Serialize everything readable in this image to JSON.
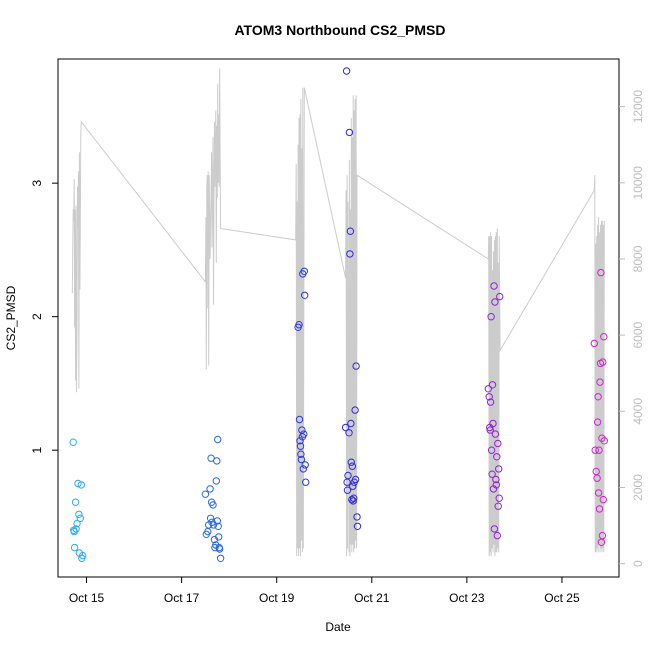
{
  "chart_data": {
    "type": "scatter",
    "title": "ATOM3 Northbound CS2_PMSD",
    "xlabel": "Date",
    "ylabel": "CS2_PMSD",
    "x_ticks": [
      {
        "day": 15,
        "label": "Oct 15"
      },
      {
        "day": 17,
        "label": "Oct 17"
      },
      {
        "day": 19,
        "label": "Oct 19"
      },
      {
        "day": 21,
        "label": "Oct 21"
      },
      {
        "day": 23,
        "label": "Oct 23"
      },
      {
        "day": 25,
        "label": "Oct 25"
      }
    ],
    "xlim": [
      14.4,
      26.2
    ],
    "ylim": [
      0.05,
      3.93
    ],
    "y_ticks": [
      1,
      2,
      3
    ],
    "y2_ticks": [
      0,
      2000,
      4000,
      6000,
      8000,
      10000,
      12000
    ],
    "y2lim": [
      -350,
      13250
    ],
    "colors": {
      "points_start": "#29b6f6",
      "points_mid": "#2a2ad8",
      "points_end": "#e020d0",
      "line": "#cccccc",
      "right_axis": "#bdbdbd"
    },
    "points": [
      [
        14.72,
        1.06
      ],
      [
        14.73,
        0.4
      ],
      [
        14.74,
        0.39
      ],
      [
        14.75,
        0.27
      ],
      [
        14.77,
        0.61
      ],
      [
        14.78,
        0.41
      ],
      [
        14.8,
        0.45
      ],
      [
        14.82,
        0.75
      ],
      [
        14.84,
        0.52
      ],
      [
        14.85,
        0.23
      ],
      [
        14.87,
        0.49
      ],
      [
        14.89,
        0.74
      ],
      [
        14.9,
        0.19
      ],
      [
        14.92,
        0.21
      ],
      [
        17.5,
        0.67
      ],
      [
        17.52,
        0.37
      ],
      [
        17.55,
        0.39
      ],
      [
        17.57,
        0.44
      ],
      [
        17.6,
        0.71
      ],
      [
        17.61,
        0.49
      ],
      [
        17.62,
        0.94
      ],
      [
        17.63,
        0.61
      ],
      [
        17.64,
        0.46
      ],
      [
        17.66,
        0.59
      ],
      [
        17.67,
        0.44
      ],
      [
        17.69,
        0.33
      ],
      [
        17.7,
        0.27
      ],
      [
        17.72,
        0.29
      ],
      [
        17.73,
        0.77
      ],
      [
        17.74,
        0.92
      ],
      [
        17.75,
        0.47
      ],
      [
        17.76,
        1.08
      ],
      [
        17.77,
        0.43
      ],
      [
        17.78,
        0.35
      ],
      [
        17.79,
        0.27
      ],
      [
        17.8,
        0.26
      ],
      [
        17.82,
        0.19
      ],
      [
        19.45,
        1.92
      ],
      [
        19.47,
        1.94
      ],
      [
        19.48,
        1.23
      ],
      [
        19.49,
        1.07
      ],
      [
        19.5,
        1.03
      ],
      [
        19.51,
        0.97
      ],
      [
        19.52,
        0.93
      ],
      [
        19.53,
        1.15
      ],
      [
        19.54,
        1.1
      ],
      [
        19.55,
        2.32
      ],
      [
        19.56,
        0.86
      ],
      [
        19.57,
        1.12
      ],
      [
        19.58,
        2.34
      ],
      [
        19.59,
        2.16
      ],
      [
        19.6,
        0.89
      ],
      [
        19.61,
        0.76
      ],
      [
        20.45,
        1.17
      ],
      [
        20.47,
        3.84
      ],
      [
        20.48,
        0.76
      ],
      [
        20.49,
        0.7
      ],
      [
        20.5,
        0.81
      ],
      [
        20.52,
        1.13
      ],
      [
        20.53,
        3.38
      ],
      [
        20.54,
        2.47
      ],
      [
        20.55,
        2.64
      ],
      [
        20.56,
        1.2
      ],
      [
        20.57,
        0.91
      ],
      [
        20.58,
        0.63
      ],
      [
        20.59,
        0.88
      ],
      [
        20.6,
        0.73
      ],
      [
        20.61,
        0.62
      ],
      [
        20.62,
        0.64
      ],
      [
        20.63,
        0.76
      ],
      [
        20.65,
        1.3
      ],
      [
        20.66,
        0.78
      ],
      [
        20.67,
        1.63
      ],
      [
        20.69,
        0.5
      ],
      [
        20.7,
        0.43
      ],
      [
        23.45,
        1.46
      ],
      [
        23.47,
        1.4
      ],
      [
        23.48,
        1.17
      ],
      [
        23.49,
        1.15
      ],
      [
        23.5,
        1.36
      ],
      [
        23.51,
        2.0
      ],
      [
        23.52,
        1.0
      ],
      [
        23.53,
        0.82
      ],
      [
        23.54,
        1.49
      ],
      [
        23.55,
        1.2
      ],
      [
        23.56,
        0.71
      ],
      [
        23.57,
        2.23
      ],
      [
        23.58,
        0.41
      ],
      [
        23.59,
        2.11
      ],
      [
        23.6,
        1.12
      ],
      [
        23.61,
        0.78
      ],
      [
        23.62,
        0.74
      ],
      [
        23.63,
        0.95
      ],
      [
        23.64,
        0.36
      ],
      [
        23.65,
        1.05
      ],
      [
        23.66,
        0.58
      ],
      [
        23.67,
        0.86
      ],
      [
        23.68,
        0.64
      ],
      [
        23.69,
        2.15
      ],
      [
        25.68,
        1.8
      ],
      [
        25.7,
        1.0
      ],
      [
        25.72,
        0.84
      ],
      [
        25.74,
        0.79
      ],
      [
        25.75,
        1.21
      ],
      [
        25.76,
        1.4
      ],
      [
        25.77,
        0.68
      ],
      [
        25.78,
        1.0
      ],
      [
        25.79,
        0.56
      ],
      [
        25.8,
        1.51
      ],
      [
        25.81,
        1.65
      ],
      [
        25.82,
        2.33
      ],
      [
        25.83,
        0.31
      ],
      [
        25.84,
        1.09
      ],
      [
        25.85,
        0.36
      ],
      [
        25.86,
        1.66
      ],
      [
        25.87,
        0.63
      ],
      [
        25.88,
        1.85
      ],
      [
        25.89,
        1.07
      ]
    ],
    "line_series": [
      [
        14.7,
        7100
      ],
      [
        14.72,
        9300
      ],
      [
        14.73,
        9000
      ],
      [
        14.74,
        10100
      ],
      [
        14.75,
        6200
      ],
      [
        14.76,
        9300
      ],
      [
        14.77,
        4800
      ],
      [
        14.78,
        9400
      ],
      [
        14.79,
        4500
      ],
      [
        14.8,
        6300
      ],
      [
        14.81,
        9900
      ],
      [
        14.82,
        8800
      ],
      [
        14.83,
        10300
      ],
      [
        14.84,
        4600
      ],
      [
        14.85,
        10800
      ],
      [
        14.86,
        7200
      ],
      [
        14.87,
        8900
      ],
      [
        14.88,
        11300
      ],
      [
        14.89,
        11600
      ],
      [
        17.5,
        7400
      ],
      [
        17.51,
        9100
      ],
      [
        17.52,
        5100
      ],
      [
        17.53,
        9900
      ],
      [
        17.54,
        10200
      ],
      [
        17.55,
        6700
      ],
      [
        17.56,
        10300
      ],
      [
        17.57,
        5200
      ],
      [
        17.58,
        10200
      ],
      [
        17.6,
        8000
      ],
      [
        17.62,
        9900
      ],
      [
        17.63,
        10800
      ],
      [
        17.64,
        8300
      ],
      [
        17.66,
        11200
      ],
      [
        17.67,
        6800
      ],
      [
        17.69,
        11600
      ],
      [
        17.7,
        9900
      ],
      [
        17.72,
        11900
      ],
      [
        17.73,
        7900
      ],
      [
        17.74,
        11500
      ],
      [
        17.75,
        9600
      ],
      [
        17.76,
        12600
      ],
      [
        17.77,
        10000
      ],
      [
        17.78,
        11800
      ],
      [
        17.79,
        9900
      ],
      [
        17.8,
        13000
      ],
      [
        17.82,
        8800
      ],
      [
        19.4,
        8500
      ],
      [
        19.41,
        10500
      ],
      [
        19.42,
        200
      ],
      [
        19.43,
        9500
      ],
      [
        19.44,
        400
      ],
      [
        19.45,
        11000
      ],
      [
        19.46,
        200
      ],
      [
        19.47,
        11700
      ],
      [
        19.48,
        400
      ],
      [
        19.49,
        11800
      ],
      [
        19.5,
        200
      ],
      [
        19.51,
        12200
      ],
      [
        19.52,
        600
      ],
      [
        19.53,
        10900
      ],
      [
        19.54,
        300
      ],
      [
        19.55,
        12500
      ],
      [
        19.56,
        400
      ],
      [
        19.58,
        12500
      ],
      [
        20.45,
        7500
      ],
      [
        20.46,
        9800
      ],
      [
        20.47,
        200
      ],
      [
        20.48,
        10200
      ],
      [
        20.49,
        400
      ],
      [
        20.5,
        9500
      ],
      [
        20.52,
        300
      ],
      [
        20.53,
        10600
      ],
      [
        20.54,
        200
      ],
      [
        20.55,
        9300
      ],
      [
        20.56,
        500
      ],
      [
        20.57,
        11700
      ],
      [
        20.58,
        300
      ],
      [
        20.59,
        11200
      ],
      [
        20.6,
        500
      ],
      [
        20.61,
        12300
      ],
      [
        20.62,
        300
      ],
      [
        20.63,
        11900
      ],
      [
        20.64,
        400
      ],
      [
        20.65,
        12200
      ],
      [
        20.66,
        600
      ],
      [
        20.67,
        12300
      ],
      [
        20.68,
        400
      ],
      [
        20.69,
        10200
      ],
      [
        23.45,
        8000
      ],
      [
        23.46,
        8600
      ],
      [
        23.47,
        200
      ],
      [
        23.48,
        8600
      ],
      [
        23.49,
        300
      ],
      [
        23.5,
        8700
      ],
      [
        23.51,
        200
      ],
      [
        23.52,
        8600
      ],
      [
        23.53,
        400
      ],
      [
        23.54,
        7700
      ],
      [
        23.55,
        300
      ],
      [
        23.56,
        8200
      ],
      [
        23.57,
        500
      ],
      [
        23.58,
        8500
      ],
      [
        23.59,
        200
      ],
      [
        23.6,
        8600
      ],
      [
        23.61,
        300
      ],
      [
        23.62,
        8700
      ],
      [
        23.63,
        300
      ],
      [
        23.64,
        8800
      ],
      [
        23.65,
        400
      ],
      [
        23.66,
        7900
      ],
      [
        23.67,
        300
      ],
      [
        23.68,
        8600
      ],
      [
        23.7,
        5600
      ],
      [
        25.68,
        9800
      ],
      [
        25.69,
        10200
      ],
      [
        25.7,
        300
      ],
      [
        25.71,
        8400
      ],
      [
        25.72,
        300
      ],
      [
        25.73,
        8600
      ],
      [
        25.74,
        400
      ],
      [
        25.75,
        8900
      ],
      [
        25.76,
        300
      ],
      [
        25.77,
        9100
      ],
      [
        25.78,
        500
      ],
      [
        25.79,
        8700
      ],
      [
        25.8,
        300
      ],
      [
        25.81,
        8900
      ],
      [
        25.82,
        400
      ],
      [
        25.83,
        9000
      ],
      [
        25.84,
        300
      ],
      [
        25.85,
        9000
      ],
      [
        25.86,
        400
      ],
      [
        25.87,
        8900
      ],
      [
        25.88,
        300
      ],
      [
        25.89,
        9000
      ]
    ]
  }
}
